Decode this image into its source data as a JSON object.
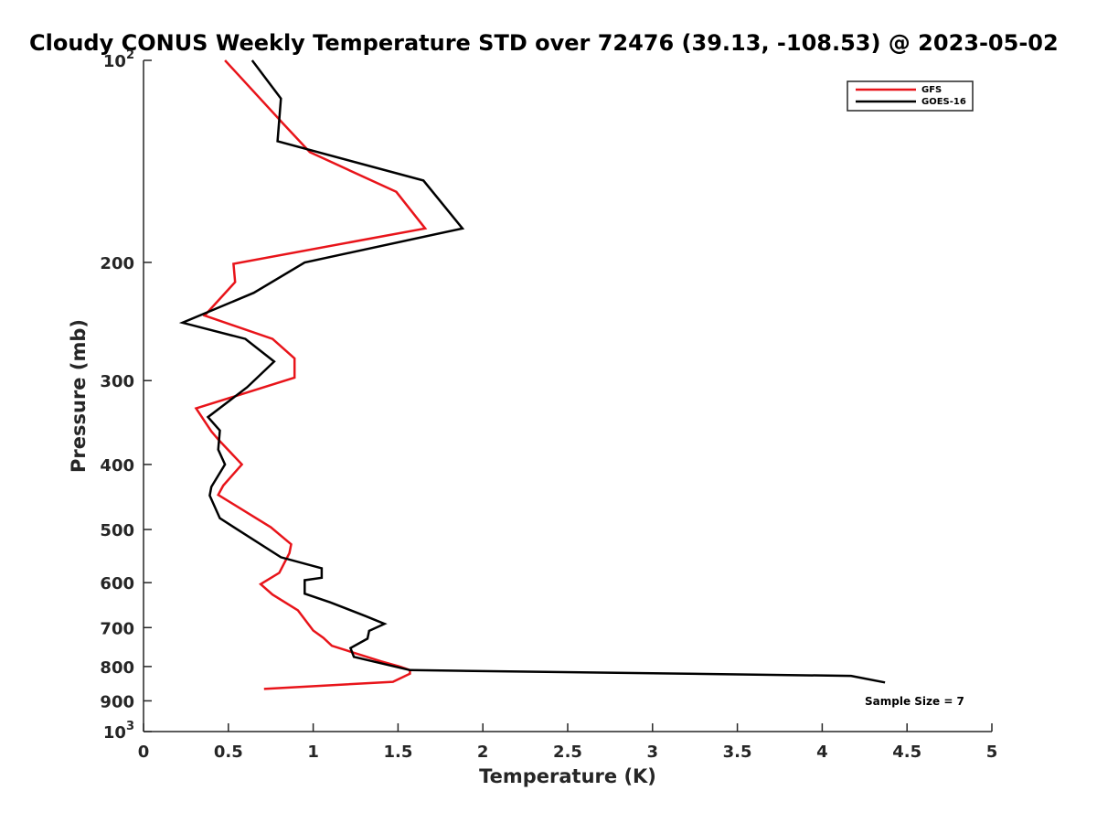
{
  "chart_data": {
    "type": "line",
    "title": "Cloudy CONUS Weekly Temperature STD over 72476 (39.13, -108.53) @ 2023-05-02",
    "xlabel": "Temperature (K)",
    "ylabel": "Pressure (mb)",
    "xlim": [
      0,
      5
    ],
    "ylim": [
      100,
      1000
    ],
    "yscale": "log",
    "y_reversed": true,
    "xticks": [
      "0",
      "0.5",
      "1",
      "1.5",
      "2",
      "2.5",
      "3",
      "3.5",
      "4",
      "4.5",
      "5"
    ],
    "yticks": [
      {
        "value": 100,
        "base": "10",
        "exp": "2"
      },
      {
        "value": 200,
        "label": "200"
      },
      {
        "value": 300,
        "label": "300"
      },
      {
        "value": 400,
        "label": "400"
      },
      {
        "value": 500,
        "label": "500"
      },
      {
        "value": 600,
        "label": "600"
      },
      {
        "value": 700,
        "label": "700"
      },
      {
        "value": 800,
        "label": "800"
      },
      {
        "value": 900,
        "label": "900"
      },
      {
        "value": 1000,
        "base": "10",
        "exp": "3"
      }
    ],
    "grid": false,
    "legend_position": "top-right",
    "annotation": "Sample Size = 7",
    "series": [
      {
        "name": "GFS",
        "color": "#e8141a",
        "points": [
          [
            0.48,
            100
          ],
          [
            0.82,
            124
          ],
          [
            0.98,
            137
          ],
          [
            1.49,
            157
          ],
          [
            1.66,
            178
          ],
          [
            0.53,
            201
          ],
          [
            0.54,
            214
          ],
          [
            0.36,
            240
          ],
          [
            0.76,
            260
          ],
          [
            0.89,
            278
          ],
          [
            0.89,
            297
          ],
          [
            0.31,
            330
          ],
          [
            0.4,
            357
          ],
          [
            0.44,
            367
          ],
          [
            0.58,
            400
          ],
          [
            0.47,
            430
          ],
          [
            0.44,
            444
          ],
          [
            0.75,
            496
          ],
          [
            0.87,
            526
          ],
          [
            0.86,
            542
          ],
          [
            0.8,
            580
          ],
          [
            0.69,
            603
          ],
          [
            0.76,
            625
          ],
          [
            0.91,
            660
          ],
          [
            1.0,
            707
          ],
          [
            1.06,
            725
          ],
          [
            1.11,
            745
          ],
          [
            1.4,
            786
          ],
          [
            1.51,
            800
          ],
          [
            1.57,
            810
          ],
          [
            1.57,
            820
          ],
          [
            1.47,
            843
          ],
          [
            0.71,
            864
          ]
        ]
      },
      {
        "name": "GOES-16",
        "color": "#000000",
        "points": [
          [
            0.64,
            100
          ],
          [
            0.81,
            114
          ],
          [
            0.79,
            132
          ],
          [
            1.65,
            151
          ],
          [
            1.88,
            178
          ],
          [
            0.95,
            200
          ],
          [
            0.65,
            222
          ],
          [
            0.23,
            246
          ],
          [
            0.6,
            260
          ],
          [
            0.77,
            281
          ],
          [
            0.61,
            307
          ],
          [
            0.38,
            340
          ],
          [
            0.45,
            356
          ],
          [
            0.44,
            380
          ],
          [
            0.48,
            400
          ],
          [
            0.4,
            432
          ],
          [
            0.39,
            445
          ],
          [
            0.45,
            481
          ],
          [
            0.81,
            550
          ],
          [
            1.05,
            571
          ],
          [
            1.05,
            590
          ],
          [
            0.95,
            595
          ],
          [
            0.95,
            623
          ],
          [
            1.1,
            642
          ],
          [
            1.31,
            673
          ],
          [
            1.42,
            691
          ],
          [
            1.33,
            708
          ],
          [
            1.32,
            727
          ],
          [
            1.22,
            751
          ],
          [
            1.24,
            774
          ],
          [
            1.57,
            810
          ],
          [
            4.17,
            826
          ],
          [
            4.37,
            845
          ]
        ]
      }
    ]
  }
}
